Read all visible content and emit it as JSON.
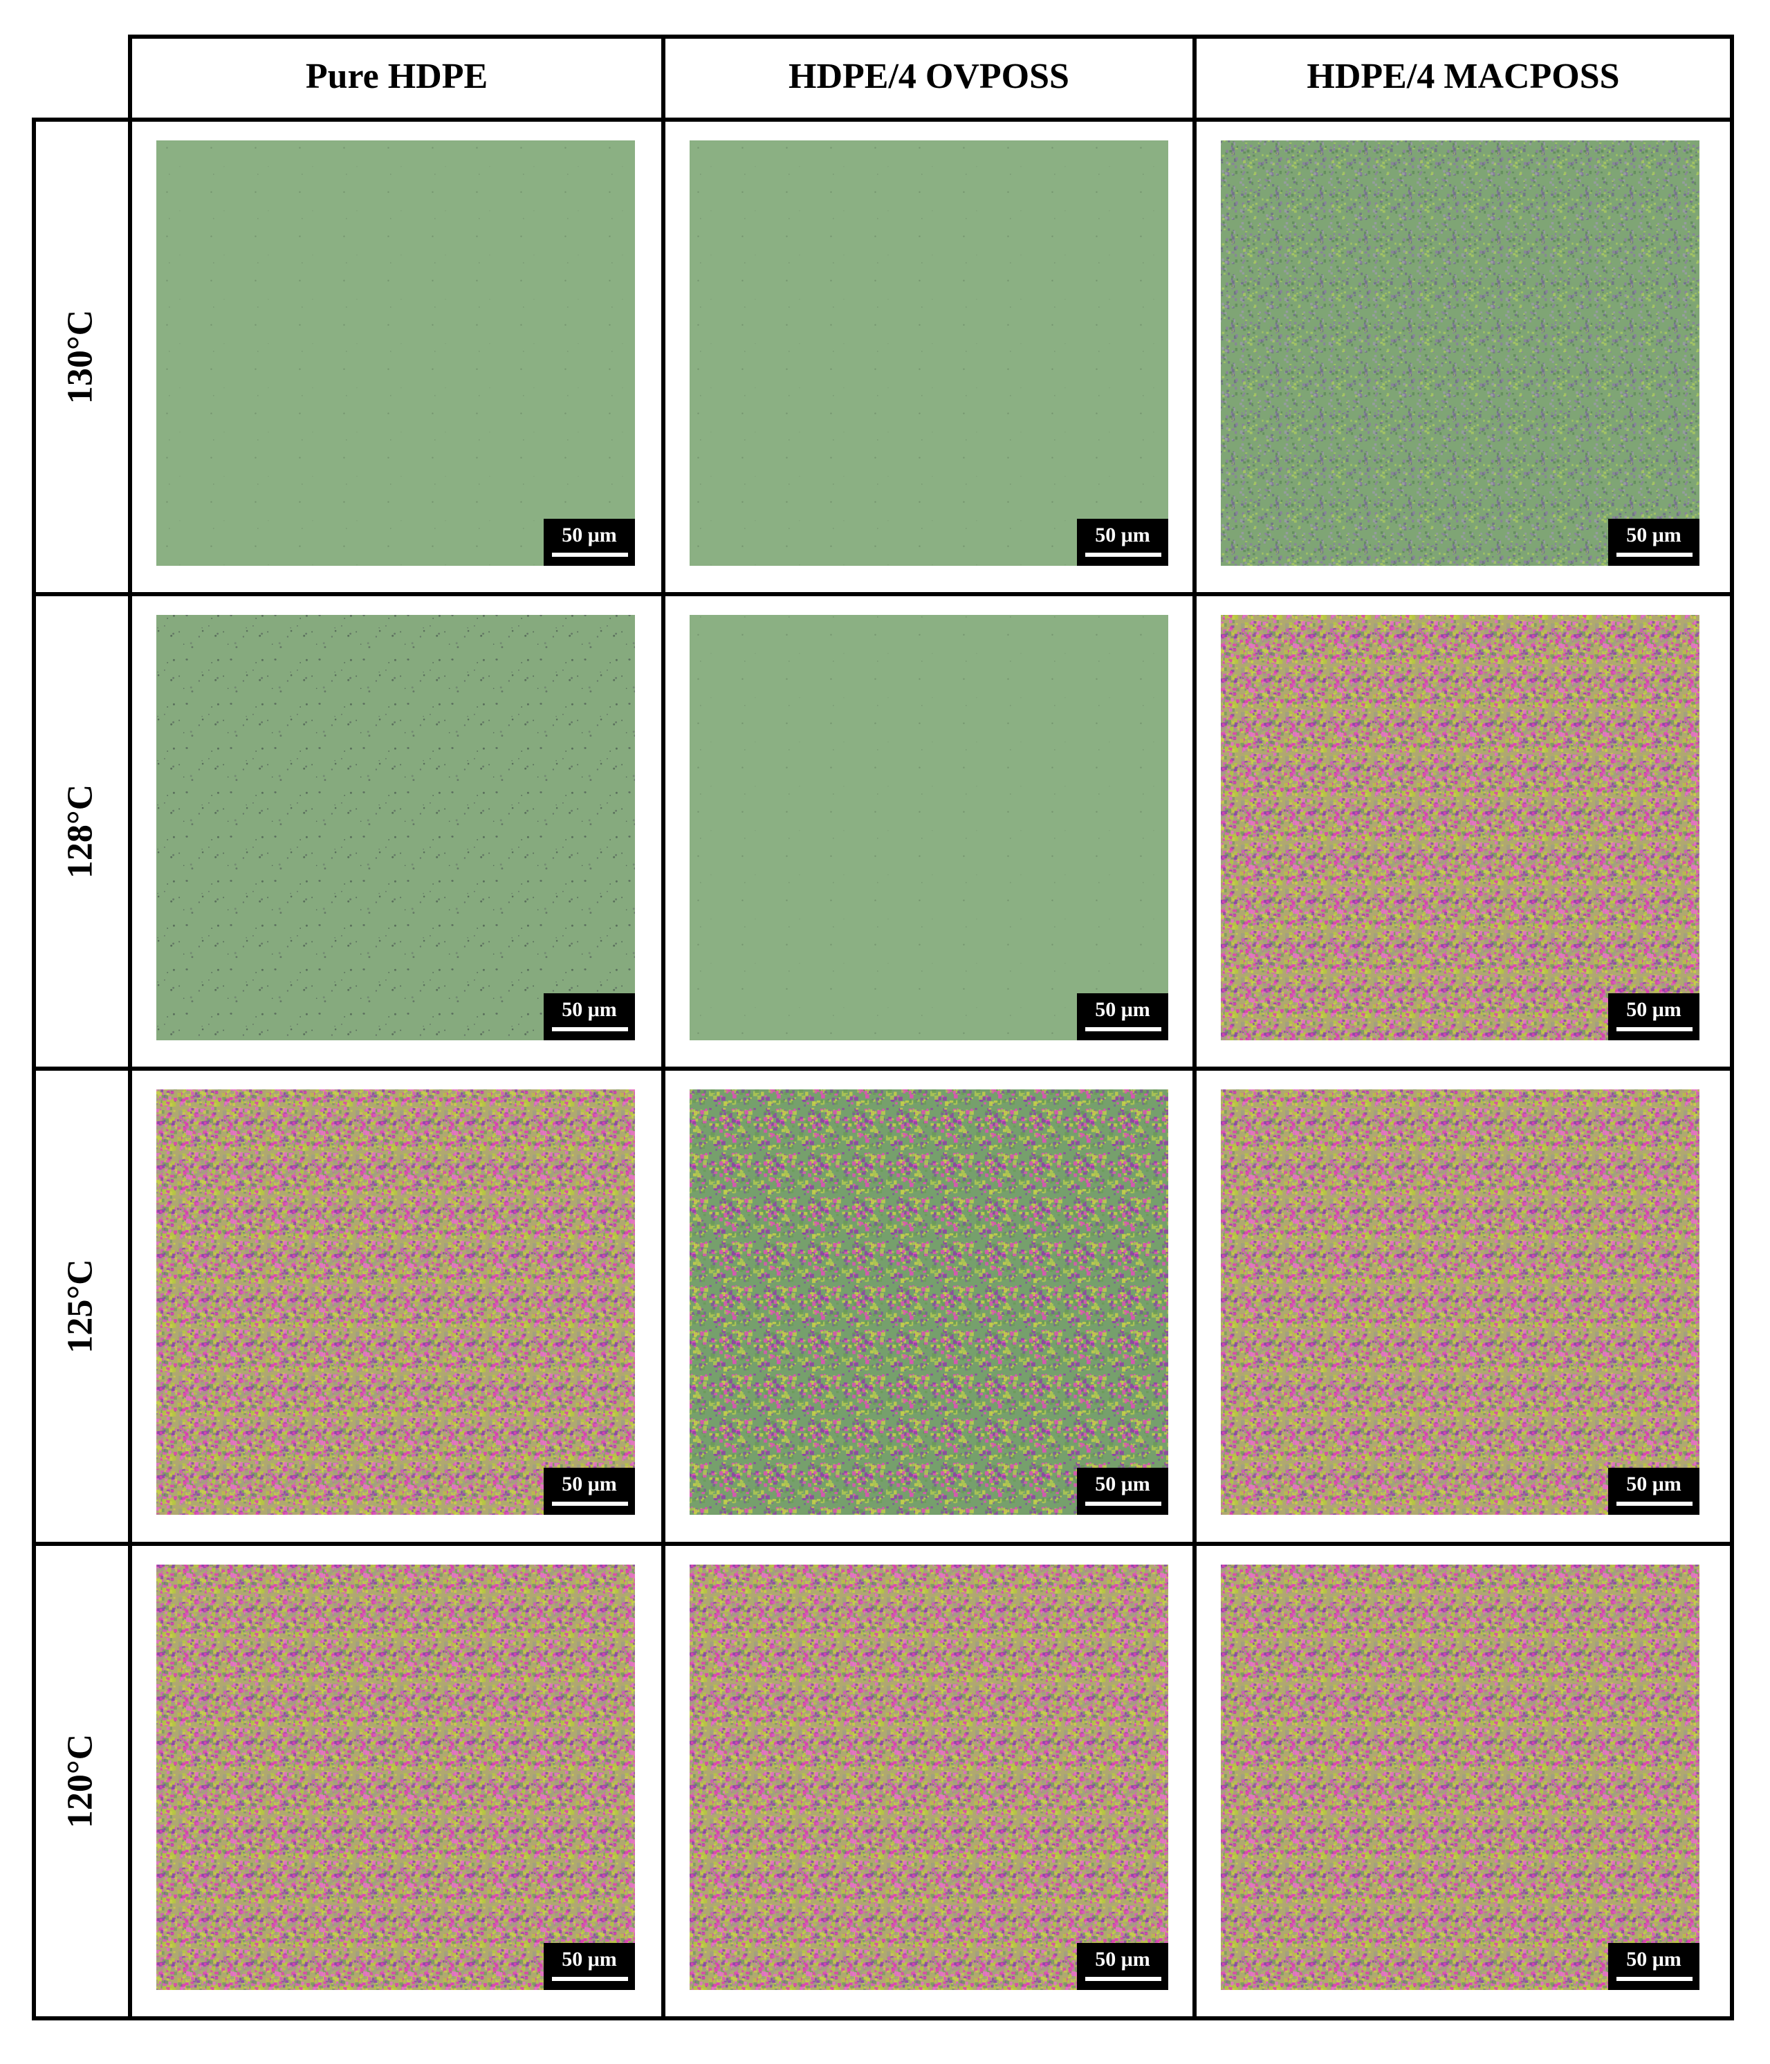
{
  "table": {
    "columns": [
      "Pure HDPE",
      "HDPE/4 OVPOSS",
      "HDPE/4 MACPOSS"
    ],
    "rows": [
      {
        "label": "130°C",
        "scale_bars": [
          "50 μm",
          "50 μm",
          "50 μm"
        ]
      },
      {
        "label": "128°C",
        "scale_bars": [
          "50 μm",
          "50 μm",
          "50 μm"
        ]
      },
      {
        "label": "125°C",
        "scale_bars": [
          "50 μm",
          "50 μm",
          "50 μm"
        ]
      },
      {
        "label": "120°C",
        "scale_bars": [
          "50 μm",
          "50 μm",
          "50 μm"
        ]
      }
    ]
  }
}
